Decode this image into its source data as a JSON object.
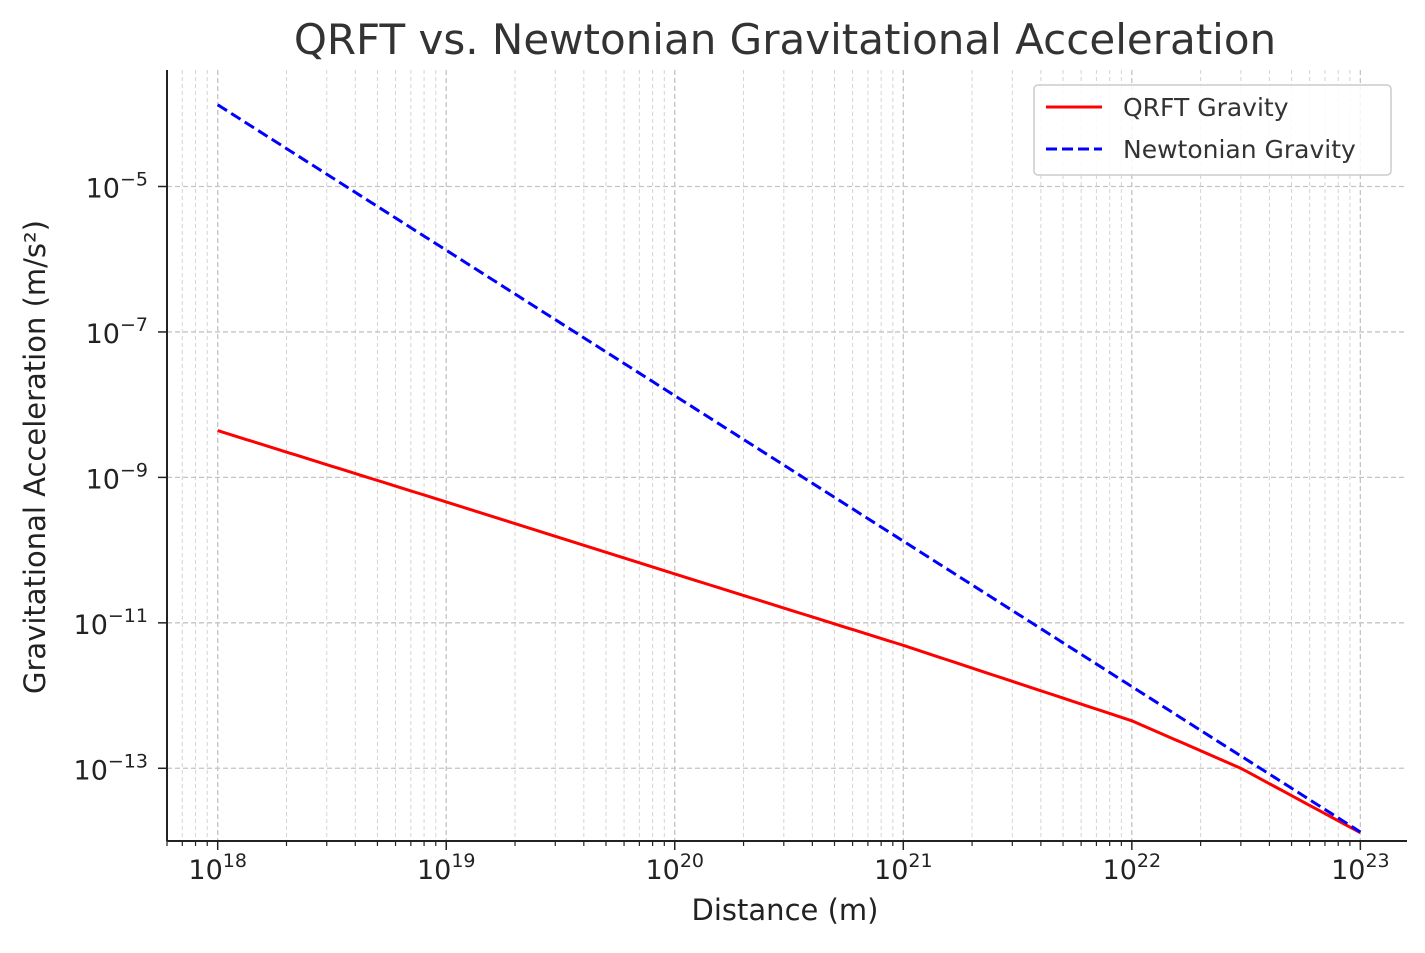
{
  "chart_data": {
    "type": "line",
    "title": "QRFT vs. Newtonian Gravitational Acceleration",
    "xlabel": "Distance (m)",
    "ylabel": "Gravitational Acceleration (m/s²)",
    "x_scale": "log",
    "y_scale": "log",
    "xlim": [
      6e+17,
      1.6e+23
    ],
    "ylim": [
      1e-14,
      0.0004
    ],
    "grid": true,
    "legend_position": "top-right",
    "x_ticks": [
      {
        "value": 1e+18,
        "base": "10",
        "exp": "18"
      },
      {
        "value": 1e+19,
        "base": "10",
        "exp": "19"
      },
      {
        "value": 1e+20,
        "base": "10",
        "exp": "20"
      },
      {
        "value": 1e+21,
        "base": "10",
        "exp": "21"
      },
      {
        "value": 1e+22,
        "base": "10",
        "exp": "22"
      },
      {
        "value": 1e+23,
        "base": "10",
        "exp": "23"
      }
    ],
    "y_ticks": [
      {
        "value": 1e-05,
        "base": "10",
        "exp": "−5"
      },
      {
        "value": 1e-07,
        "base": "10",
        "exp": "−7"
      },
      {
        "value": 1e-09,
        "base": "10",
        "exp": "−9"
      },
      {
        "value": 1e-11,
        "base": "10",
        "exp": "−11"
      },
      {
        "value": 1e-13,
        "base": "10",
        "exp": "−13"
      }
    ],
    "series": [
      {
        "name": "QRFT Gravity",
        "color": "#ff0000",
        "line_style": "solid",
        "x": [
          1e+18,
          1e+19,
          1e+20,
          1e+21,
          1e+22,
          3e+22,
          1e+23
        ],
        "y": [
          4.4e-09,
          4.6e-10,
          4.7e-11,
          4.9e-12,
          4.5e-13,
          1e-13,
          1.3e-14
        ]
      },
      {
        "name": "Newtonian Gravity",
        "color": "#0000ff",
        "line_style": "dashed",
        "x": [
          1e+18,
          1e+19,
          1e+20,
          1e+21,
          1e+22,
          1e+23
        ],
        "y": [
          0.000133,
          1.33e-06,
          1.33e-08,
          1.33e-10,
          1.33e-12,
          1.33e-14
        ]
      }
    ]
  }
}
